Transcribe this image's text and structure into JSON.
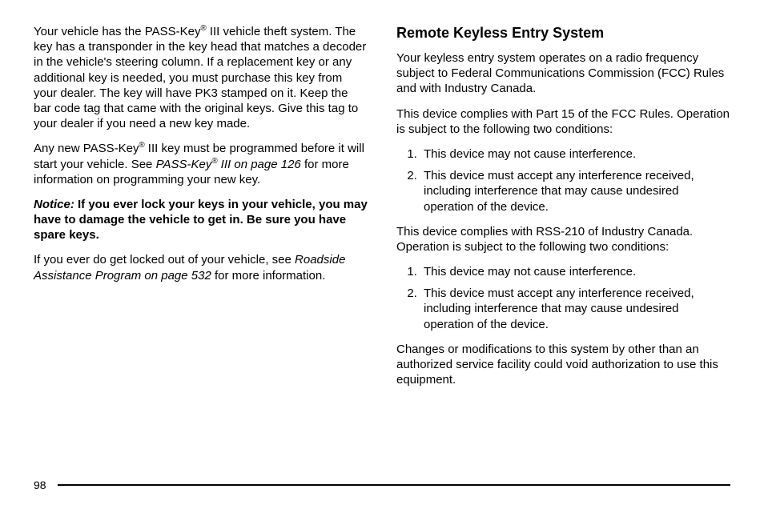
{
  "left": {
    "p1a": "Your vehicle has the PASS-Key",
    "p1b": " III vehicle theft system. The key has a transponder in the key head that matches a decoder in the vehicle's steering column. If a replacement key or any additional key is needed, you must purchase this key from your dealer. The key will have PK3 stamped on it. Keep the bar code tag that came with the original keys. Give this tag to your dealer if you need a new key made.",
    "p2a": "Any new PASS-Key",
    "p2b": " III key must be programmed before it will start your vehicle. See ",
    "p2c": "PASS-Key",
    "p2d": " III on page 126",
    "p2e": " for more information on programming your new key.",
    "noticeLabel": "Notice:",
    "noticeText": "   If you ever lock your keys in your vehicle, you may have to damage the vehicle to get in. Be sure you have spare keys.",
    "p4a": "If you ever do get locked out of your vehicle, see ",
    "p4b": "Roadside Assistance Program on page 532",
    "p4c": " for more information."
  },
  "right": {
    "heading": "Remote Keyless Entry System",
    "p1": "Your keyless entry system operates on a radio frequency subject to Federal Communications Commission (FCC) Rules and with Industry Canada.",
    "p2": "This device complies with Part 15 of the FCC Rules. Operation is subject to the following two conditions:",
    "list1": [
      "This device may not cause interference.",
      "This device must accept any interference received, including interference that may cause undesired operation of the device."
    ],
    "p3": "This device complies with RSS-210 of Industry Canada. Operation is subject to the following two conditions:",
    "list2": [
      "This device may not cause interference.",
      "This device must accept any interference received, including interference that may cause undesired operation of the device."
    ],
    "p4": "Changes or modifications to this system by other than an authorized service facility could void authorization to use this equipment."
  },
  "reg": "®",
  "pageNumber": "98"
}
